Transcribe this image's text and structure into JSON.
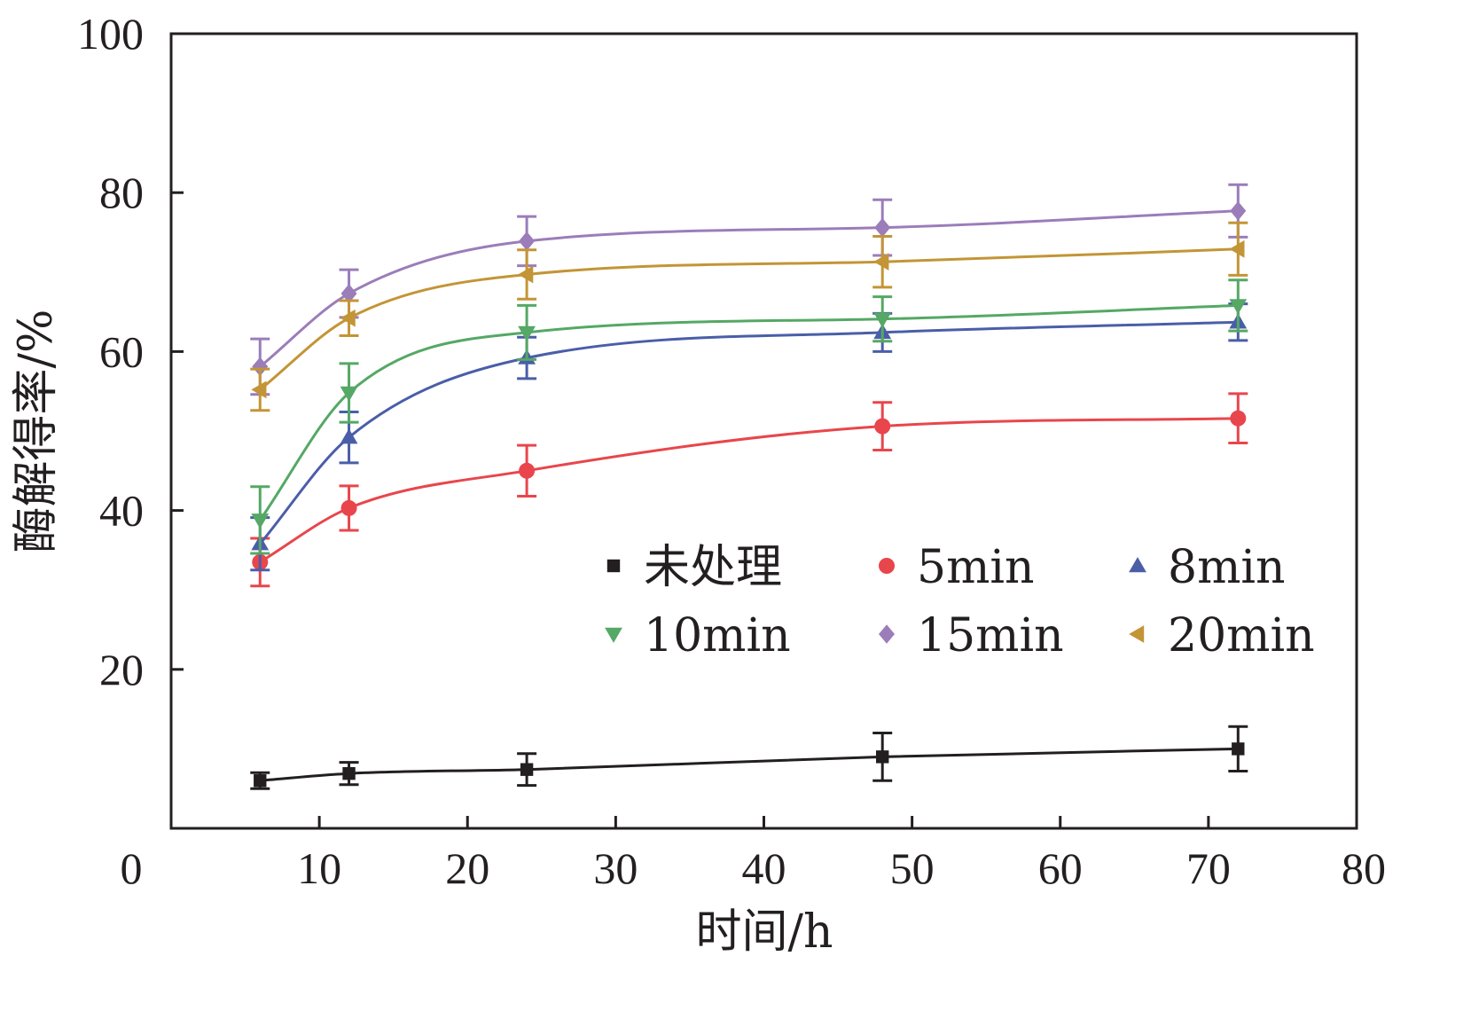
{
  "chart_data": {
    "type": "line",
    "title": "",
    "xlabel": "时间/h",
    "ylabel": "酶解得率/%",
    "xlim": [
      0,
      80
    ],
    "ylim": [
      0,
      100
    ],
    "x_ticks": [
      0,
      10,
      20,
      30,
      40,
      50,
      60,
      70,
      80
    ],
    "y_ticks": [
      20,
      40,
      60,
      80,
      100
    ],
    "x_tick_labels": [
      "0",
      "10",
      "20",
      "30",
      "40",
      "50",
      "60",
      "70",
      "80"
    ],
    "y_tick_labels": [
      "20",
      "40",
      "60",
      "80",
      "100"
    ],
    "grid": false,
    "legend": {
      "placement": "center-right",
      "columns": 3
    },
    "series": [
      {
        "name": "未处理",
        "color": "#231f20",
        "marker": "square",
        "x": [
          6,
          12,
          24,
          48,
          72
        ],
        "values": [
          6.0,
          6.9,
          7.4,
          9.0,
          10.0
        ],
        "errors": [
          1.0,
          1.4,
          2.0,
          3.0,
          2.8
        ]
      },
      {
        "name": "5min",
        "color": "#e8464c",
        "marker": "circle",
        "x": [
          6,
          12,
          24,
          48,
          72
        ],
        "values": [
          33.5,
          40.3,
          45.0,
          50.6,
          51.6
        ],
        "errors": [
          3.0,
          2.8,
          3.2,
          3.0,
          3.1
        ]
      },
      {
        "name": "8min",
        "color": "#4a5ea8",
        "marker": "triangle-up",
        "x": [
          6,
          12,
          24,
          48,
          72
        ],
        "values": [
          35.8,
          49.2,
          59.2,
          62.4,
          63.7
        ],
        "errors": [
          3.3,
          3.2,
          2.6,
          2.4,
          2.3
        ]
      },
      {
        "name": "10min",
        "color": "#55a865",
        "marker": "triangle-down",
        "x": [
          6,
          12,
          24,
          48,
          72
        ],
        "values": [
          38.8,
          54.8,
          62.4,
          64.1,
          65.8
        ],
        "errors": [
          4.2,
          3.7,
          3.4,
          2.8,
          3.2
        ]
      },
      {
        "name": "15min",
        "color": "#9b7db9",
        "marker": "diamond",
        "x": [
          6,
          12,
          24,
          48,
          72
        ],
        "values": [
          58.1,
          67.3,
          73.9,
          75.6,
          77.7
        ],
        "errors": [
          3.5,
          3.0,
          3.1,
          3.5,
          3.3
        ]
      },
      {
        "name": "20min",
        "color": "#c39536",
        "marker": "triangle-left",
        "x": [
          6,
          12,
          24,
          48,
          72
        ],
        "values": [
          55.2,
          64.2,
          69.7,
          71.3,
          72.9
        ],
        "errors": [
          2.6,
          2.2,
          3.1,
          3.2,
          3.3
        ]
      }
    ]
  }
}
